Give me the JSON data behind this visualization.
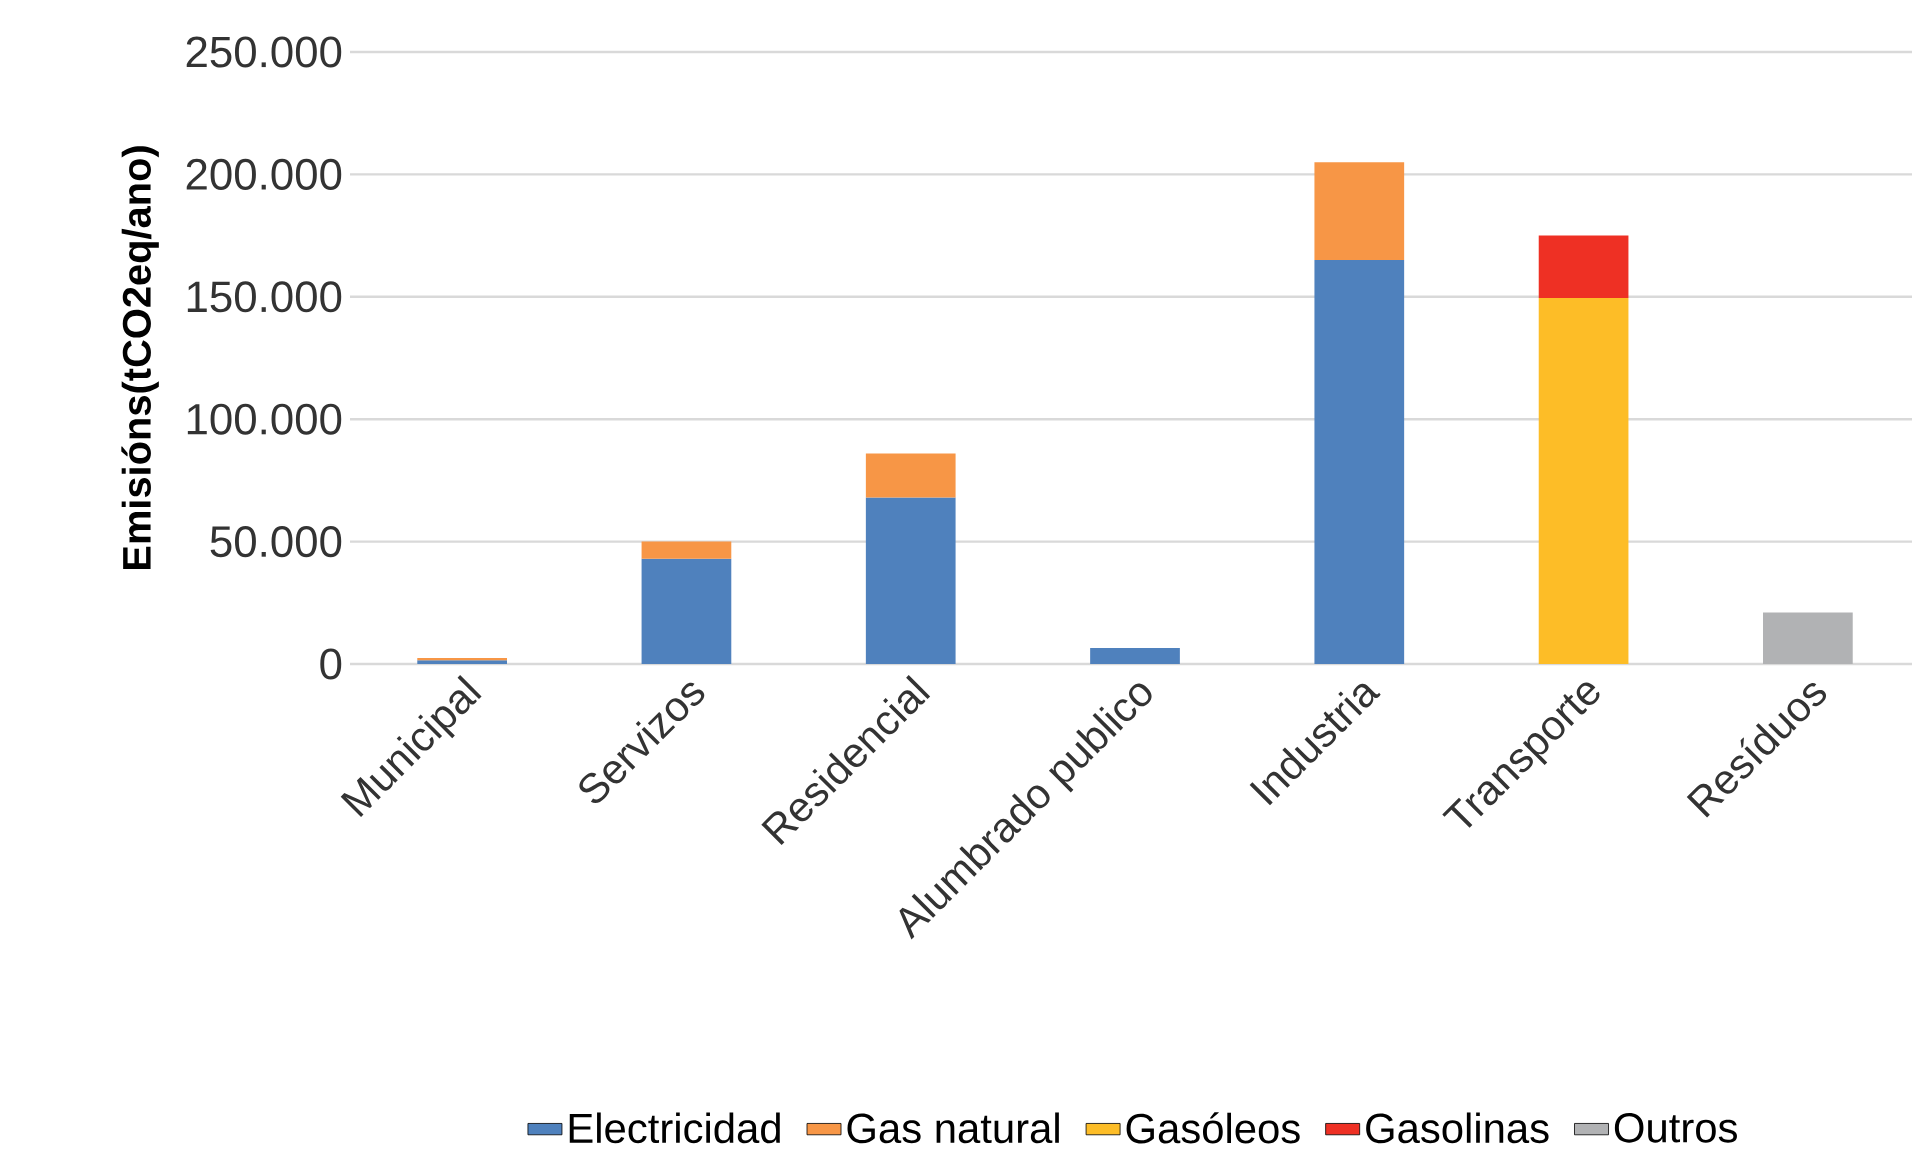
{
  "chart_data": {
    "type": "bar",
    "stacked": true,
    "ylabel": "Emisións(tCO2eq/ano)",
    "categories": [
      "Municipal",
      "Servizos",
      "Residencial",
      "Alumbrado publico",
      "Industria",
      "Transporte",
      "Resíduos"
    ],
    "series": [
      {
        "name": "Electricidad",
        "color": "#4f81bd",
        "values": [
          1500,
          43000,
          68000,
          6500,
          165000,
          null,
          null
        ]
      },
      {
        "name": "Gas natural",
        "color": "#f79646",
        "values": [
          1000,
          7000,
          18000,
          null,
          40000,
          null,
          null
        ]
      },
      {
        "name": "Gasóleos",
        "color": "#fdbd27",
        "values": [
          null,
          null,
          null,
          null,
          null,
          149500,
          null
        ]
      },
      {
        "name": "Gasolinas",
        "color": "#ee3024",
        "values": [
          null,
          null,
          null,
          null,
          null,
          25500,
          null
        ]
      },
      {
        "name": "Outros",
        "color": "#b1b2b4",
        "values": [
          null,
          null,
          null,
          null,
          null,
          null,
          21000
        ]
      }
    ],
    "ylim": [
      0,
      250000
    ],
    "yticks": [
      {
        "value": 0,
        "label": "0"
      },
      {
        "value": 50000,
        "label": "50.000"
      },
      {
        "value": 100000,
        "label": "100.000"
      },
      {
        "value": 150000,
        "label": "150.000"
      },
      {
        "value": 200000,
        "label": "200.000"
      },
      {
        "value": 250000,
        "label": "250.000"
      }
    ],
    "grid": "y",
    "legend": "bottom"
  }
}
